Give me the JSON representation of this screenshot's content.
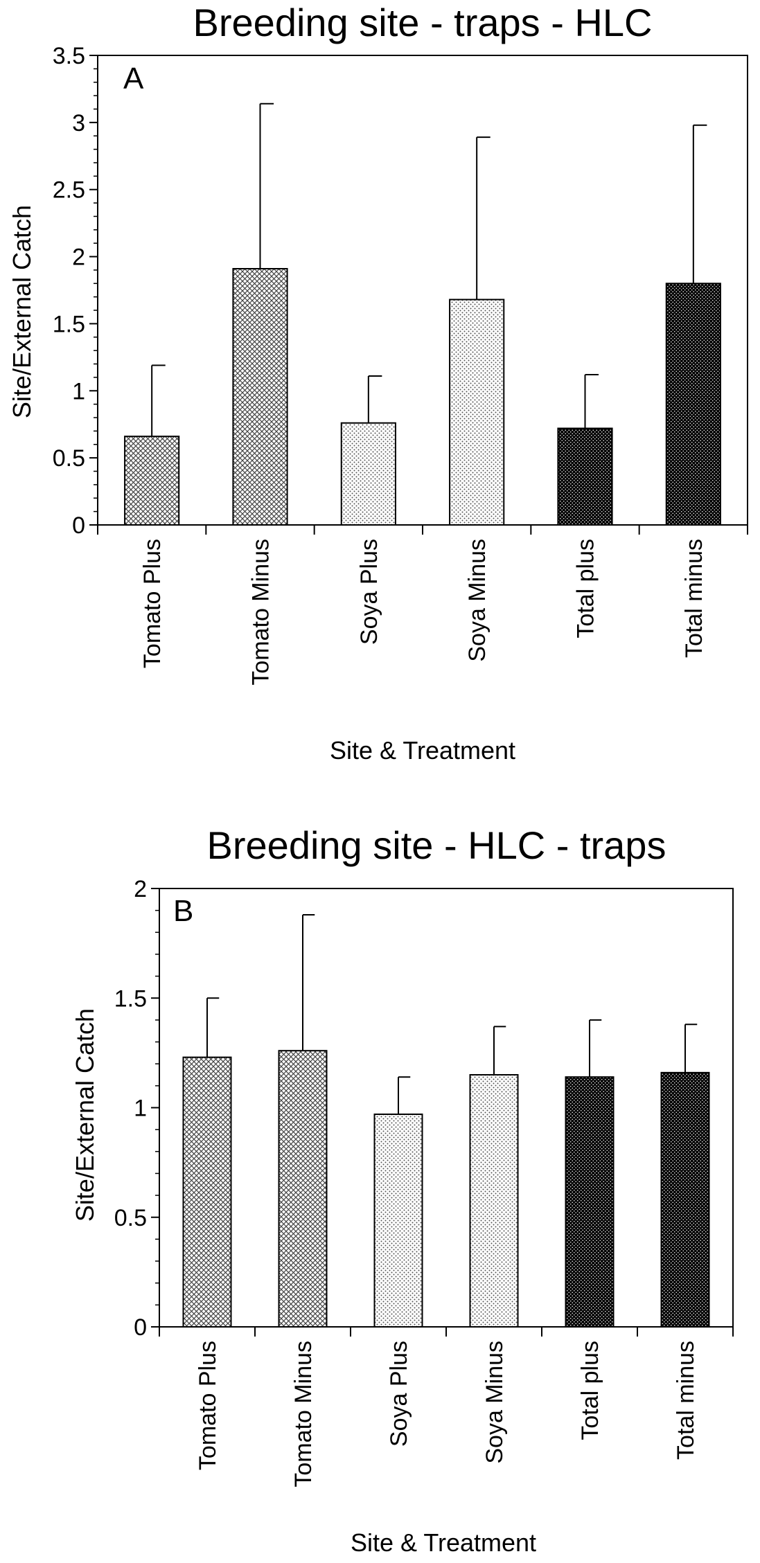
{
  "chart_data": [
    {
      "type": "bar",
      "title": "Breeding site - traps - HLC",
      "panel_label": "A",
      "xlabel": "Site & Treatment",
      "ylabel": "Site/External Catch",
      "ylim": [
        0,
        3.5
      ],
      "yticks": [
        "0",
        "0.5",
        "1",
        "1.5",
        "2",
        "2.5",
        "3",
        "3.5"
      ],
      "categories": [
        "Tomato Plus",
        "Tomato Minus",
        "Soya Plus",
        "Soya Minus",
        "Total plus",
        "Total minus"
      ],
      "values": [
        0.66,
        1.91,
        0.76,
        1.68,
        0.72,
        1.8
      ],
      "error_upper": [
        1.19,
        3.14,
        1.11,
        2.89,
        1.12,
        2.98
      ],
      "patterns": [
        "crosshatch",
        "crosshatch",
        "dots-light",
        "dots-light",
        "dots-dark",
        "dots-dark"
      ],
      "grid": false,
      "legend": "none"
    },
    {
      "type": "bar",
      "title": "Breeding site - HLC - traps",
      "panel_label": "B",
      "xlabel": "Site & Treatment",
      "ylabel": "Site/External Catch",
      "ylim": [
        0,
        2
      ],
      "yticks": [
        "0",
        "0.5",
        "1",
        "1.5",
        "2"
      ],
      "categories": [
        "Tomato Plus",
        "Tomato Minus",
        "Soya Plus",
        "Soya Minus",
        "Total plus",
        "Total minus"
      ],
      "values": [
        1.23,
        1.26,
        0.97,
        1.15,
        1.14,
        1.16
      ],
      "error_upper": [
        1.5,
        1.88,
        1.14,
        1.37,
        1.4,
        1.38
      ],
      "patterns": [
        "crosshatch",
        "crosshatch",
        "dots-light",
        "dots-light",
        "dots-dark",
        "dots-dark"
      ],
      "grid": false,
      "legend": "none"
    }
  ]
}
